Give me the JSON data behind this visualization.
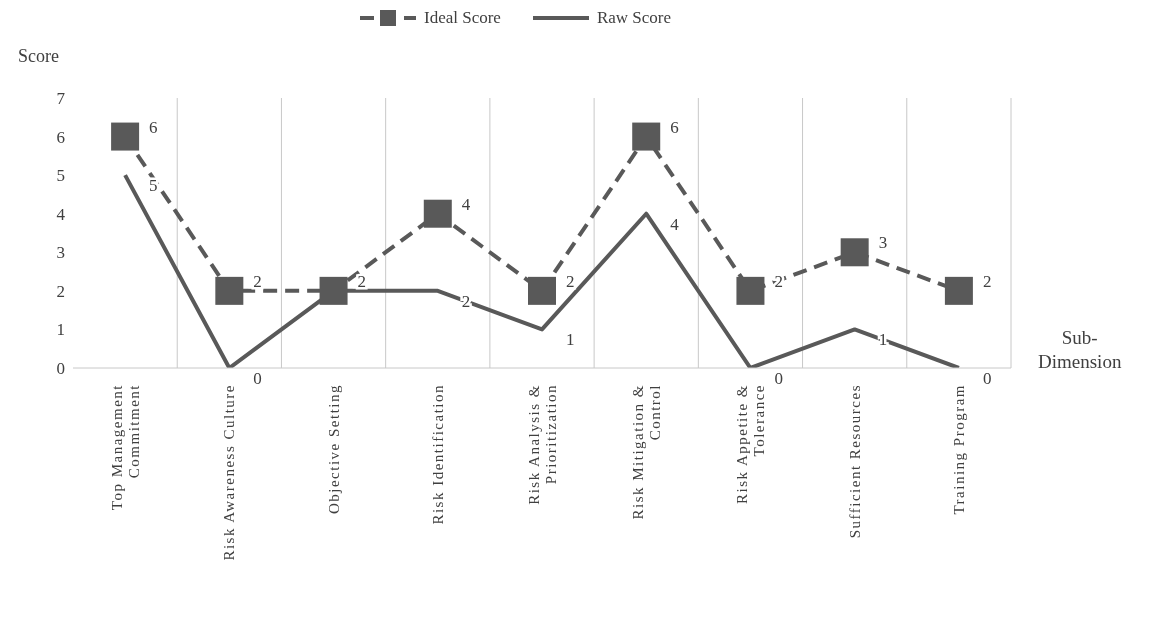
{
  "chart_data": {
    "type": "line",
    "xlabel": "Sub-Dimension",
    "ylabel": "Score",
    "categories": [
      "Top Management Commitment",
      "Risk Awareness Culture",
      "Objective Setting",
      "Risk Identification",
      "Risk Analysis & Prioritization",
      "Risk Mitigation & Control",
      "Risk Appetite & Tolerance",
      "Sufficient Resources",
      "Training Program"
    ],
    "series": [
      {
        "name": "Ideal Score",
        "color": "#595959",
        "values": [
          6,
          2,
          2,
          4,
          2,
          6,
          2,
          3,
          2
        ],
        "value_labels": [
          "6",
          "2",
          "2",
          "4",
          "2",
          "6",
          "2",
          "3",
          "2"
        ],
        "line_style": "dashed",
        "marker": "square"
      },
      {
        "name": "Raw Score",
        "color": "#595959",
        "values": [
          5,
          0,
          2,
          2,
          1,
          4,
          0,
          1,
          0
        ],
        "value_labels": [
          "5",
          "0",
          null,
          "2",
          "1",
          "4",
          "0",
          "1",
          "0"
        ],
        "line_style": "solid",
        "marker": "none"
      }
    ],
    "ylim": [
      0,
      7
    ],
    "yticks": [
      0,
      1,
      2,
      3,
      4,
      5,
      6,
      7
    ],
    "grid": "x",
    "legend": "top"
  }
}
